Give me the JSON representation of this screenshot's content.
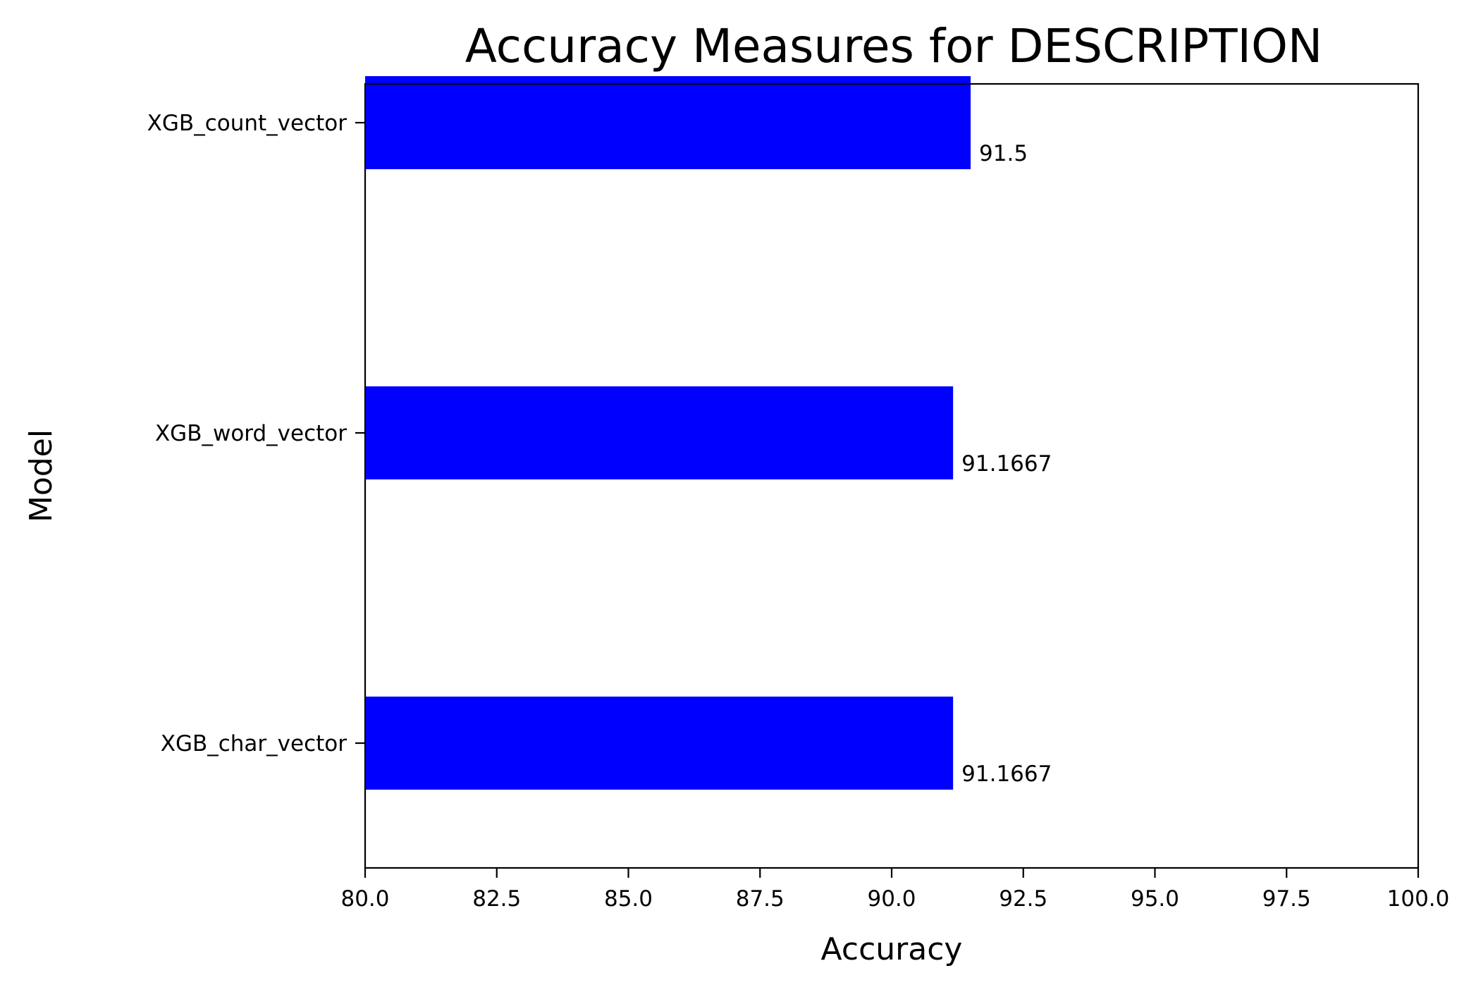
{
  "chart_data": {
    "type": "bar",
    "orientation": "horizontal",
    "title": "Accuracy Measures for DESCRIPTION",
    "xlabel": "Accuracy",
    "ylabel": "Model",
    "categories": [
      "XGB_count_vector",
      "XGB_word_vector",
      "XGB_char_vector"
    ],
    "values": [
      91.5,
      91.1667,
      91.1667
    ],
    "data_labels": [
      "91.5",
      "91.1667",
      "91.1667"
    ],
    "xlim": [
      80.0,
      100.0
    ],
    "x_ticks": [
      80.0,
      82.5,
      85.0,
      87.5,
      90.0,
      92.5,
      95.0,
      97.5,
      100.0
    ],
    "x_tick_labels": [
      "80.0",
      "82.5",
      "85.0",
      "87.5",
      "90.0",
      "92.5",
      "95.0",
      "97.5",
      "100.0"
    ],
    "bar_color": "#0000ff",
    "grid": false,
    "legend": "none"
  }
}
